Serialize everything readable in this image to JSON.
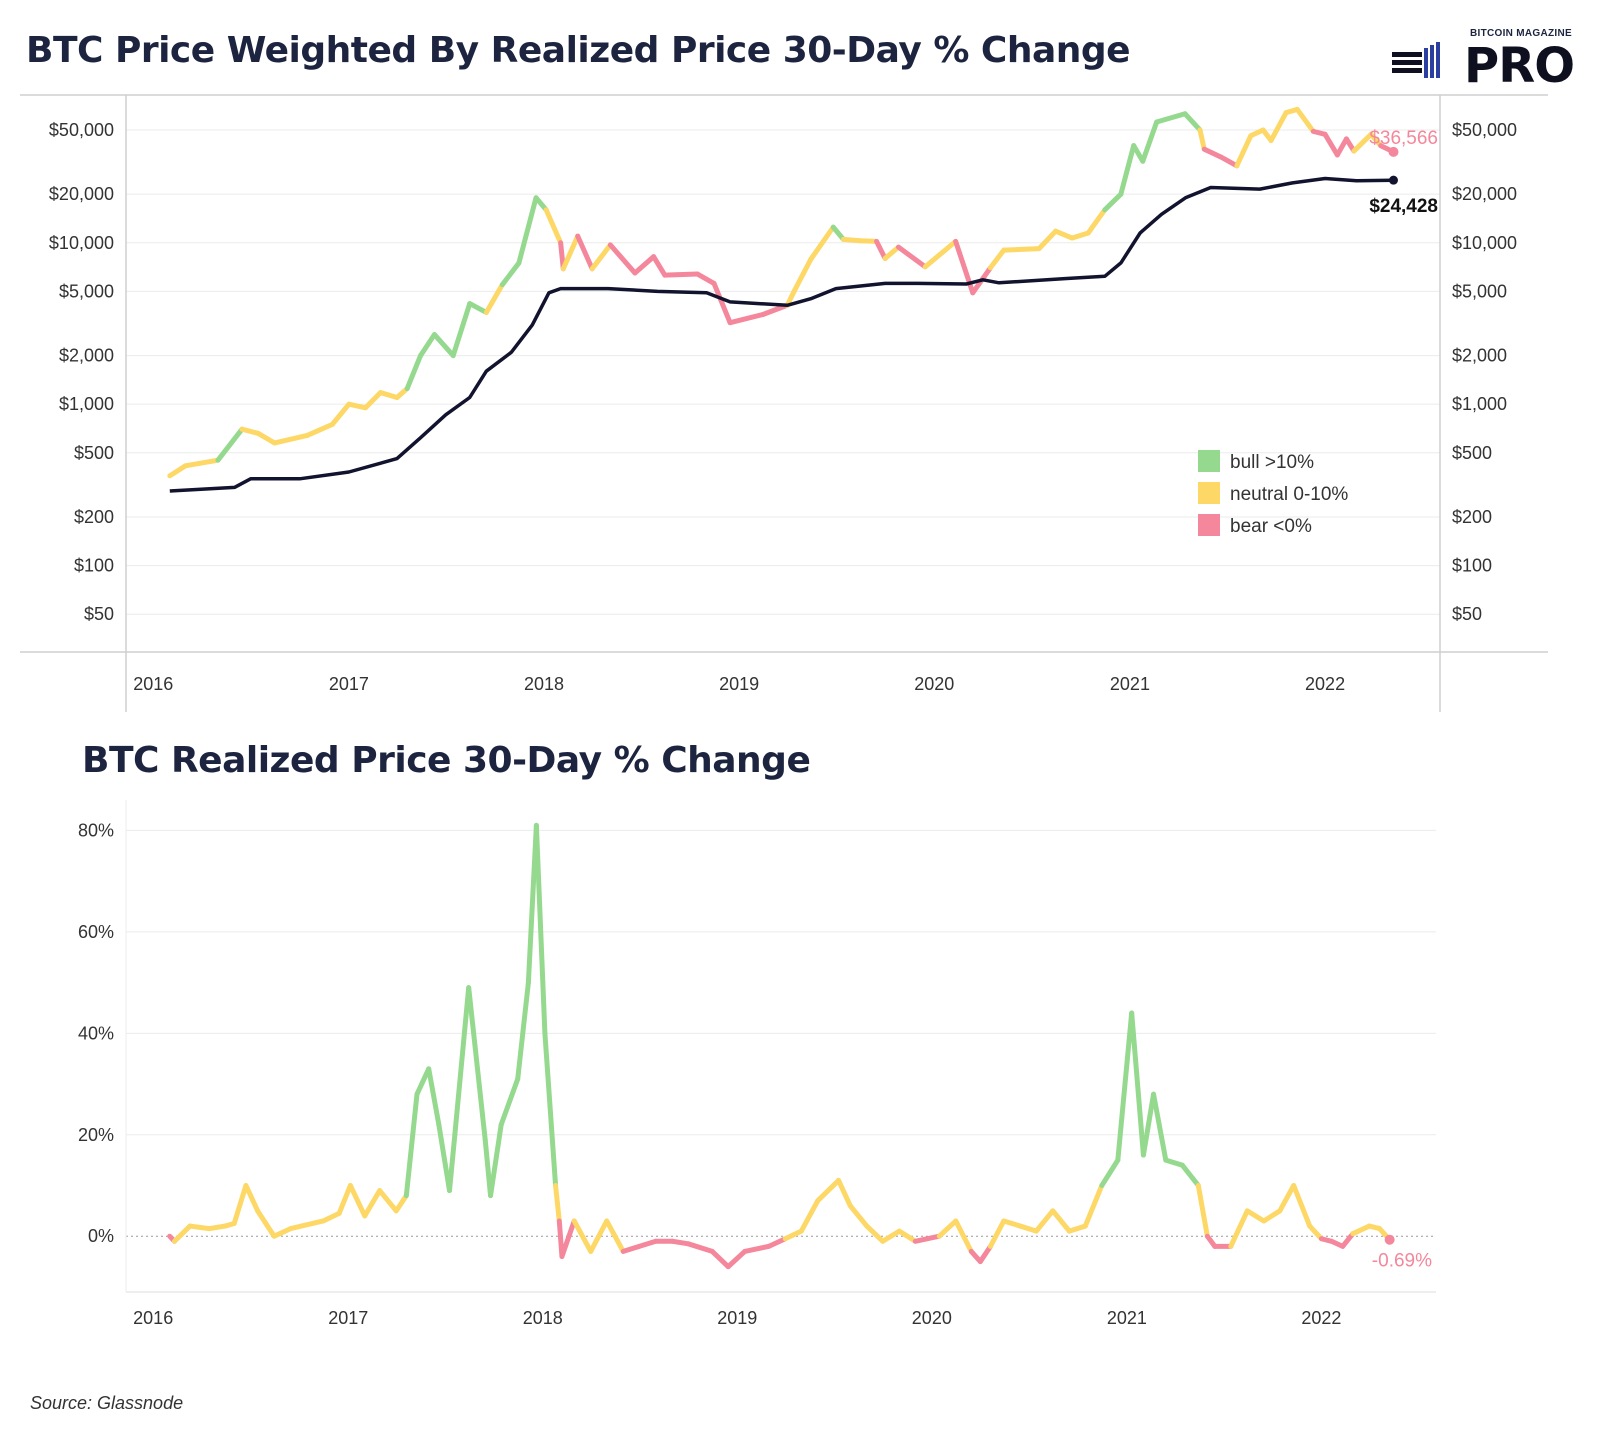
{
  "brand": {
    "top": "BITCOIN MAGAZINE",
    "main": "PRO",
    "mark": "bitcoin-magazine-bars-icon"
  },
  "titles": {
    "top": "BTC Price Weighted By Realized Price 30-Day % Change",
    "bottom": "BTC Realized Price 30-Day % Change"
  },
  "source": "Source: Glassnode",
  "colors": {
    "bull": "#95d98f",
    "neutral": "#fdd866",
    "bear": "#f4879b",
    "realized": "#12132e",
    "grid": "#ebebeb"
  },
  "chart_data": [
    {
      "type": "line",
      "title": "BTC Price Weighted By Realized Price 30-Day % Change",
      "yscale": "log",
      "ylim": [
        30,
        80000
      ],
      "y_ticks": [
        50,
        100,
        200,
        500,
        1000,
        2000,
        5000,
        10000,
        20000,
        50000
      ],
      "y_tick_labels": [
        "$50",
        "$100",
        "$200",
        "$500",
        "$1,000",
        "$2,000",
        "$5,000",
        "$10,000",
        "$20,000",
        "$50,000"
      ],
      "y_axis_sides": [
        "left",
        "right"
      ],
      "x_ticks": [
        "2016",
        "2017",
        "2018",
        "2019",
        "2020",
        "2021",
        "2022"
      ],
      "xlim": [
        "2015-11-11",
        "2022-08-04"
      ],
      "grid": true,
      "legend": {
        "placement": "right-middle",
        "entries": [
          {
            "label": "bull >10%",
            "color": "#95d98f"
          },
          {
            "label": "neutral 0-10%",
            "color": "#fdd866"
          },
          {
            "label": "bear <0%",
            "color": "#f4879b"
          }
        ]
      },
      "series": [
        {
          "kind": "price",
          "colored_by": "realized_price_30d_change",
          "points": [
            [
              "2016-02-01",
              360,
              "bear"
            ],
            [
              "2016-03-01",
              415,
              "neutral"
            ],
            [
              "2016-05-01",
              450,
              "neutral"
            ],
            [
              "2016-06-15",
              700,
              "bull"
            ],
            [
              "2016-07-15",
              660,
              "neutral"
            ],
            [
              "2016-08-15",
              575,
              "neutral"
            ],
            [
              "2016-10-15",
              640,
              "neutral"
            ],
            [
              "2016-12-01",
              750,
              "neutral"
            ],
            [
              "2017-01-01",
              1000,
              "neutral"
            ],
            [
              "2017-02-01",
              950,
              "neutral"
            ],
            [
              "2017-03-01",
              1180,
              "neutral"
            ],
            [
              "2017-04-01",
              1100,
              "neutral"
            ],
            [
              "2017-04-20",
              1250,
              "neutral"
            ],
            [
              "2017-05-15",
              2000,
              "bull"
            ],
            [
              "2017-06-10",
              2700,
              "bull"
            ],
            [
              "2017-07-15",
              2000,
              "bull"
            ],
            [
              "2017-08-15",
              4200,
              "bull"
            ],
            [
              "2017-09-15",
              3700,
              "bull"
            ],
            [
              "2017-10-15",
              5500,
              "neutral"
            ],
            [
              "2017-11-15",
              7500,
              "bull"
            ],
            [
              "2017-12-17",
              19000,
              "bull"
            ],
            [
              "2018-01-05",
              16000,
              "bull"
            ],
            [
              "2018-02-01",
              10000,
              "neutral"
            ],
            [
              "2018-02-06",
              6900,
              "bear"
            ],
            [
              "2018-03-05",
              11000,
              "neutral"
            ],
            [
              "2018-04-01",
              6900,
              "bear"
            ],
            [
              "2018-05-05",
              9700,
              "neutral"
            ],
            [
              "2018-06-20",
              6500,
              "bear"
            ],
            [
              "2018-07-25",
              8200,
              "bear"
            ],
            [
              "2018-08-15",
              6300,
              "bear"
            ],
            [
              "2018-10-15",
              6400,
              "bear"
            ],
            [
              "2018-11-15",
              5600,
              "bear"
            ],
            [
              "2018-12-15",
              3200,
              "bear"
            ],
            [
              "2019-02-15",
              3600,
              "bear"
            ],
            [
              "2019-04-01",
              4100,
              "bear"
            ],
            [
              "2019-04-15",
              5100,
              "neutral"
            ],
            [
              "2019-05-15",
              7900,
              "neutral"
            ],
            [
              "2019-06-26",
              12500,
              "neutral"
            ],
            [
              "2019-07-15",
              10500,
              "bull"
            ],
            [
              "2019-08-15",
              10300,
              "neutral"
            ],
            [
              "2019-09-15",
              10200,
              "neutral"
            ],
            [
              "2019-10-01",
              8000,
              "bear"
            ],
            [
              "2019-10-26",
              9400,
              "neutral"
            ],
            [
              "2019-12-15",
              7100,
              "bear"
            ],
            [
              "2020-02-10",
              10200,
              "neutral"
            ],
            [
              "2020-03-13",
              4900,
              "bear"
            ],
            [
              "2020-04-15",
              7000,
              "bear"
            ],
            [
              "2020-05-10",
              9000,
              "neutral"
            ],
            [
              "2020-07-15",
              9200,
              "neutral"
            ],
            [
              "2020-08-15",
              11800,
              "neutral"
            ],
            [
              "2020-09-15",
              10700,
              "neutral"
            ],
            [
              "2020-10-15",
              11500,
              "neutral"
            ],
            [
              "2020-11-15",
              16000,
              "neutral"
            ],
            [
              "2020-12-15",
              20000,
              "bull"
            ],
            [
              "2021-01-08",
              40000,
              "bull"
            ],
            [
              "2021-01-25",
              32000,
              "bull"
            ],
            [
              "2021-02-20",
              56000,
              "bull"
            ],
            [
              "2021-04-14",
              63000,
              "bull"
            ],
            [
              "2021-05-12",
              50000,
              "bull"
            ],
            [
              "2021-05-20",
              38000,
              "neutral"
            ],
            [
              "2021-06-20",
              34000,
              "bear"
            ],
            [
              "2021-07-20",
              30000,
              "bear"
            ],
            [
              "2021-08-15",
              46000,
              "neutral"
            ],
            [
              "2021-09-07",
              50000,
              "neutral"
            ],
            [
              "2021-09-22",
              43000,
              "neutral"
            ],
            [
              "2021-10-20",
              64000,
              "neutral"
            ],
            [
              "2021-11-10",
              67000,
              "neutral"
            ],
            [
              "2021-12-10",
              49000,
              "neutral"
            ],
            [
              "2022-01-01",
              47000,
              "bear"
            ],
            [
              "2022-01-24",
              35000,
              "bear"
            ],
            [
              "2022-02-10",
              44000,
              "bear"
            ],
            [
              "2022-02-24",
              37000,
              "bear"
            ],
            [
              "2022-03-28",
              47000,
              "neutral"
            ],
            [
              "2022-04-15",
              40000,
              "neutral"
            ],
            [
              "2022-05-09",
              36566,
              "bear"
            ]
          ],
          "end_label": "$36,566"
        },
        {
          "kind": "realized_price",
          "color": "#12132e",
          "points": [
            [
              "2016-02-01",
              290
            ],
            [
              "2016-06-01",
              305
            ],
            [
              "2016-07-01",
              345
            ],
            [
              "2016-10-01",
              345
            ],
            [
              "2017-01-01",
              380
            ],
            [
              "2017-04-01",
              460
            ],
            [
              "2017-05-15",
              620
            ],
            [
              "2017-07-01",
              860
            ],
            [
              "2017-08-15",
              1100
            ],
            [
              "2017-09-15",
              1600
            ],
            [
              "2017-11-01",
              2100
            ],
            [
              "2017-12-10",
              3100
            ],
            [
              "2018-01-10",
              4900
            ],
            [
              "2018-02-01",
              5200
            ],
            [
              "2018-05-01",
              5200
            ],
            [
              "2018-08-01",
              5000
            ],
            [
              "2018-11-01",
              4900
            ],
            [
              "2018-12-15",
              4300
            ],
            [
              "2019-04-01",
              4100
            ],
            [
              "2019-05-15",
              4500
            ],
            [
              "2019-07-01",
              5200
            ],
            [
              "2019-10-01",
              5600
            ],
            [
              "2019-12-01",
              5600
            ],
            [
              "2020-03-01",
              5550
            ],
            [
              "2020-04-01",
              5900
            ],
            [
              "2020-05-01",
              5650
            ],
            [
              "2020-09-01",
              6000
            ],
            [
              "2020-11-15",
              6200
            ],
            [
              "2020-12-15",
              7500
            ],
            [
              "2021-01-20",
              11500
            ],
            [
              "2021-03-01",
              15000
            ],
            [
              "2021-04-15",
              19000
            ],
            [
              "2021-06-01",
              22000
            ],
            [
              "2021-09-01",
              21500
            ],
            [
              "2021-11-01",
              23500
            ],
            [
              "2022-01-01",
              25000
            ],
            [
              "2022-03-01",
              24200
            ],
            [
              "2022-05-09",
              24428
            ]
          ],
          "end_label": "$24,428"
        }
      ]
    },
    {
      "type": "line",
      "title": "BTC Realized Price 30-Day % Change",
      "ylim": [
        -11,
        86
      ],
      "y_ticks": [
        0,
        20,
        40,
        60,
        80
      ],
      "y_tick_labels": [
        "0%",
        "20%",
        "40%",
        "60%",
        "80%"
      ],
      "x_ticks": [
        "2016",
        "2017",
        "2018",
        "2019",
        "2020",
        "2021",
        "2022"
      ],
      "xlim": [
        "2015-11-11",
        "2022-08-04"
      ],
      "grid": true,
      "zero_line": "dotted",
      "series": [
        {
          "kind": "realized_price_30d_change",
          "points": [
            [
              "2016-02-01",
              0
            ],
            [
              "2016-02-10",
              -1
            ],
            [
              "2016-03-10",
              2
            ],
            [
              "2016-04-15",
              1.5
            ],
            [
              "2016-05-15",
              2
            ],
            [
              "2016-06-01",
              2.5
            ],
            [
              "2016-06-23",
              10
            ],
            [
              "2016-07-15",
              5
            ],
            [
              "2016-08-15",
              0
            ],
            [
              "2016-09-15",
              1.5
            ],
            [
              "2016-11-15",
              3
            ],
            [
              "2016-12-15",
              4.5
            ],
            [
              "2017-01-05",
              10
            ],
            [
              "2017-02-01",
              4
            ],
            [
              "2017-03-01",
              9
            ],
            [
              "2017-04-01",
              5
            ],
            [
              "2017-04-20",
              8
            ],
            [
              "2017-05-10",
              28
            ],
            [
              "2017-06-01",
              33
            ],
            [
              "2017-06-20",
              22
            ],
            [
              "2017-07-10",
              9
            ],
            [
              "2017-07-20",
              20
            ],
            [
              "2017-08-15",
              49
            ],
            [
              "2017-09-15",
              19
            ],
            [
              "2017-09-25",
              8
            ],
            [
              "2017-10-15",
              22
            ],
            [
              "2017-11-15",
              31
            ],
            [
              "2017-12-05",
              50
            ],
            [
              "2017-12-20",
              81
            ],
            [
              "2018-01-05",
              40
            ],
            [
              "2018-01-25",
              10
            ],
            [
              "2018-02-01",
              3
            ],
            [
              "2018-02-06",
              -4
            ],
            [
              "2018-03-01",
              3
            ],
            [
              "2018-04-01",
              -3
            ],
            [
              "2018-05-01",
              3
            ],
            [
              "2018-06-01",
              -3
            ],
            [
              "2018-07-01",
              -2
            ],
            [
              "2018-08-01",
              -1
            ],
            [
              "2018-09-01",
              -1
            ],
            [
              "2018-10-01",
              -1.5
            ],
            [
              "2018-11-15",
              -3
            ],
            [
              "2018-12-15",
              -6
            ],
            [
              "2019-01-15",
              -3
            ],
            [
              "2019-03-01",
              -2
            ],
            [
              "2019-04-01",
              -0.5
            ],
            [
              "2019-05-01",
              1
            ],
            [
              "2019-06-01",
              7
            ],
            [
              "2019-07-10",
              11
            ],
            [
              "2019-08-01",
              6
            ],
            [
              "2019-09-01",
              2
            ],
            [
              "2019-10-01",
              -1
            ],
            [
              "2019-11-01",
              1
            ],
            [
              "2019-12-01",
              -1
            ],
            [
              "2020-01-15",
              0
            ],
            [
              "2020-02-15",
              3
            ],
            [
              "2020-03-15",
              -3
            ],
            [
              "2020-04-01",
              -5
            ],
            [
              "2020-04-20",
              -2
            ],
            [
              "2020-05-15",
              3
            ],
            [
              "2020-06-15",
              2
            ],
            [
              "2020-07-15",
              1
            ],
            [
              "2020-08-15",
              5
            ],
            [
              "2020-09-15",
              1
            ],
            [
              "2020-10-15",
              2
            ],
            [
              "2020-11-15",
              10
            ],
            [
              "2020-12-15",
              15
            ],
            [
              "2021-01-10",
              44
            ],
            [
              "2021-02-01",
              16
            ],
            [
              "2021-02-20",
              28
            ],
            [
              "2021-03-15",
              15
            ],
            [
              "2021-04-15",
              14
            ],
            [
              "2021-05-15",
              10
            ],
            [
              "2021-06-01",
              0
            ],
            [
              "2021-06-15",
              -2
            ],
            [
              "2021-07-15",
              -2
            ],
            [
              "2021-08-15",
              5
            ],
            [
              "2021-09-15",
              3
            ],
            [
              "2021-10-15",
              5
            ],
            [
              "2021-11-10",
              10
            ],
            [
              "2021-12-10",
              2
            ],
            [
              "2022-01-01",
              -0.5
            ],
            [
              "2022-01-20",
              -1
            ],
            [
              "2022-02-10",
              -2
            ],
            [
              "2022-03-01",
              0.5
            ],
            [
              "2022-04-01",
              2
            ],
            [
              "2022-04-20",
              1.5
            ],
            [
              "2022-05-09",
              -0.69
            ]
          ],
          "end_label": "-0.69%"
        }
      ]
    }
  ]
}
